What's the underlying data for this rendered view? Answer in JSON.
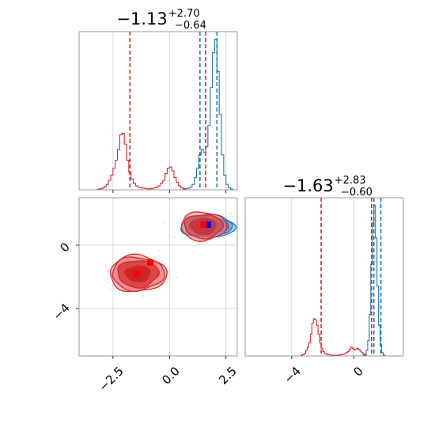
{
  "chart_data": [
    {
      "type": "histogram",
      "panel": "top-left",
      "title": {
        "value": "−1.13",
        "plus": "+2.70",
        "minus": "−0.64"
      },
      "xlim": [
        -4,
        3
      ],
      "grid": true,
      "quantile_lines": [
        {
          "series": "blue",
          "values": [
            1.35,
            2.1
          ]
        },
        {
          "series": "red",
          "values": [
            -1.75,
            1.6
          ]
        }
      ],
      "series": [
        {
          "name": "blue",
          "color": "#1f77b4",
          "bin_start": 0.6,
          "bin_width": 0.1,
          "heights": [
            2,
            4,
            6,
            10,
            20,
            45,
            80,
            130,
            150,
            140,
            160,
            240,
            380,
            510,
            560,
            440,
            280,
            130,
            55,
            20,
            8,
            3
          ]
        },
        {
          "name": "red",
          "color": "#d62728",
          "bin_start": -3.2,
          "bin_width": 0.1,
          "heights": [
            2,
            4,
            6,
            12,
            20,
            35,
            55,
            80,
            110,
            150,
            205,
            210,
            170,
            110,
            65,
            40,
            25,
            15,
            10,
            8,
            6,
            5,
            4,
            4,
            5,
            7,
            10,
            15,
            25,
            35,
            60,
            80,
            85,
            70,
            45,
            28,
            15,
            8,
            4
          ]
        }
      ]
    },
    {
      "type": "scatter",
      "panel": "bottom-left",
      "xlim": [
        -4,
        3
      ],
      "ylim": [
        -7,
        3
      ],
      "xticks": [
        "−2.5",
        "0.0",
        "2.5"
      ],
      "yticks": [
        "0",
        "−4"
      ],
      "grid": true,
      "series": [
        {
          "name": "blue",
          "color": "#1f77b4",
          "center": [
            1.7,
            1.2
          ],
          "contour_radii": [
            [
              0.55,
              0.36
            ],
            [
              0.9,
              0.5
            ],
            [
              1.05,
              0.6
            ],
            [
              1.2,
              0.7
            ]
          ],
          "marker": [
            1.7,
            1.3
          ]
        },
        {
          "name": "red",
          "color": "#d62728",
          "center": [
            -1.4,
            -1.8
          ],
          "contour_radii": [
            [
              0.55,
              0.5
            ],
            [
              0.9,
              0.85
            ],
            [
              1.15,
              1.05
            ],
            [
              1.25,
              1.15
            ]
          ],
          "marker": [
            -1.45,
            -1.8
          ]
        },
        {
          "name": "red",
          "color": "#d62728",
          "center": [
            1.5,
            1.2
          ],
          "contour_radii": [
            [
              0.55,
              0.5
            ],
            [
              0.85,
              0.75
            ],
            [
              1.0,
              0.9
            ]
          ],
          "marker": [
            1.5,
            1.3
          ]
        }
      ],
      "extra_markers": [
        {
          "color": "#ff0000",
          "x": -0.85,
          "y": -1.1
        }
      ]
    },
    {
      "type": "histogram",
      "panel": "bottom-right",
      "title": {
        "value": "−1.63",
        "plus": "+2.83",
        "minus": "−0.60"
      },
      "xlim": [
        -7,
        3.2
      ],
      "xticks": [
        "−4",
        "0"
      ],
      "grid": true,
      "quantile_lines": [
        {
          "series": "blue",
          "values": [
            1.3,
            1.75
          ]
        },
        {
          "series": "red",
          "values": [
            -2.1,
            1.15
          ]
        }
      ],
      "series": [
        {
          "name": "blue",
          "color": "#1f77b4",
          "bin_start": 0.6,
          "bin_width": 0.1,
          "heights": [
            3,
            8,
            25,
            70,
            190,
            420,
            610,
            690,
            540,
            320,
            140,
            50,
            15,
            4
          ]
        },
        {
          "name": "red",
          "color": "#d62728",
          "bin_start": -3.4,
          "bin_width": 0.1,
          "heights": [
            3,
            6,
            12,
            25,
            40,
            60,
            100,
            150,
            170,
            165,
            140,
            100,
            60,
            35,
            20,
            12,
            8,
            6,
            5,
            4,
            3,
            3,
            3,
            3,
            4,
            5,
            6,
            8,
            10,
            15,
            20,
            30,
            40,
            35,
            28,
            30,
            35,
            30,
            22,
            15,
            8,
            4
          ]
        }
      ]
    }
  ]
}
